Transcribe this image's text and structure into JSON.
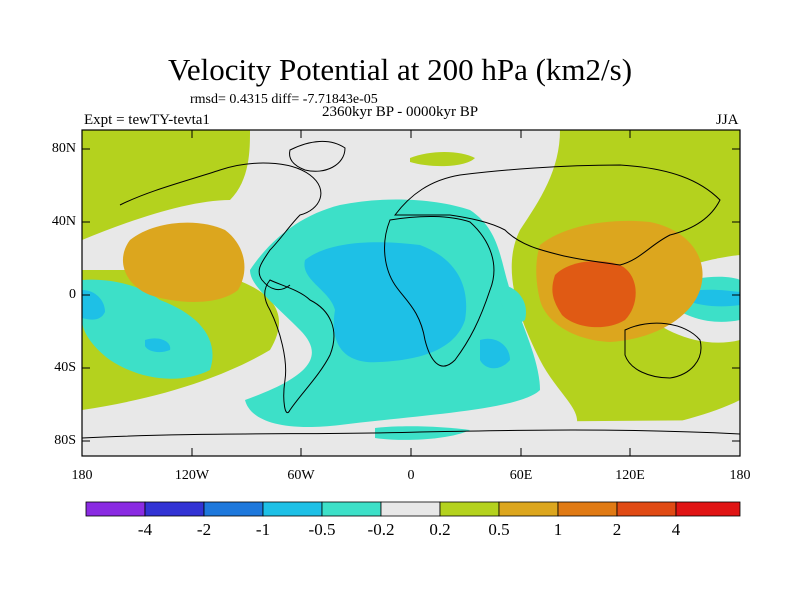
{
  "title": "Velocity Potential at 200 hPa (km2/s)",
  "stats": "rmsd= 0.4315 diff= -7.71843e-05",
  "period": "2360kyr BP - 0000kyr BP",
  "experiment": "Expt = tewTY-tevta1",
  "season": "JJA",
  "y_ticks": [
    "80N",
    "40N",
    "0",
    "40S",
    "80S"
  ],
  "x_ticks": [
    "180",
    "120W",
    "60W",
    "0",
    "60E",
    "120E",
    "180"
  ],
  "colorbar": {
    "labels": [
      "-4",
      "-2",
      "-1",
      "-0.5",
      "-0.2",
      "0.2",
      "0.5",
      "1",
      "2",
      "4"
    ],
    "colors": [
      "#8a2be2",
      "#3233d4",
      "#1e78dc",
      "#1ec0e6",
      "#3de0c8",
      "#e8e8e8",
      "#b4d21e",
      "#dca61e",
      "#e05a14",
      "#e01414"
    ]
  }
}
